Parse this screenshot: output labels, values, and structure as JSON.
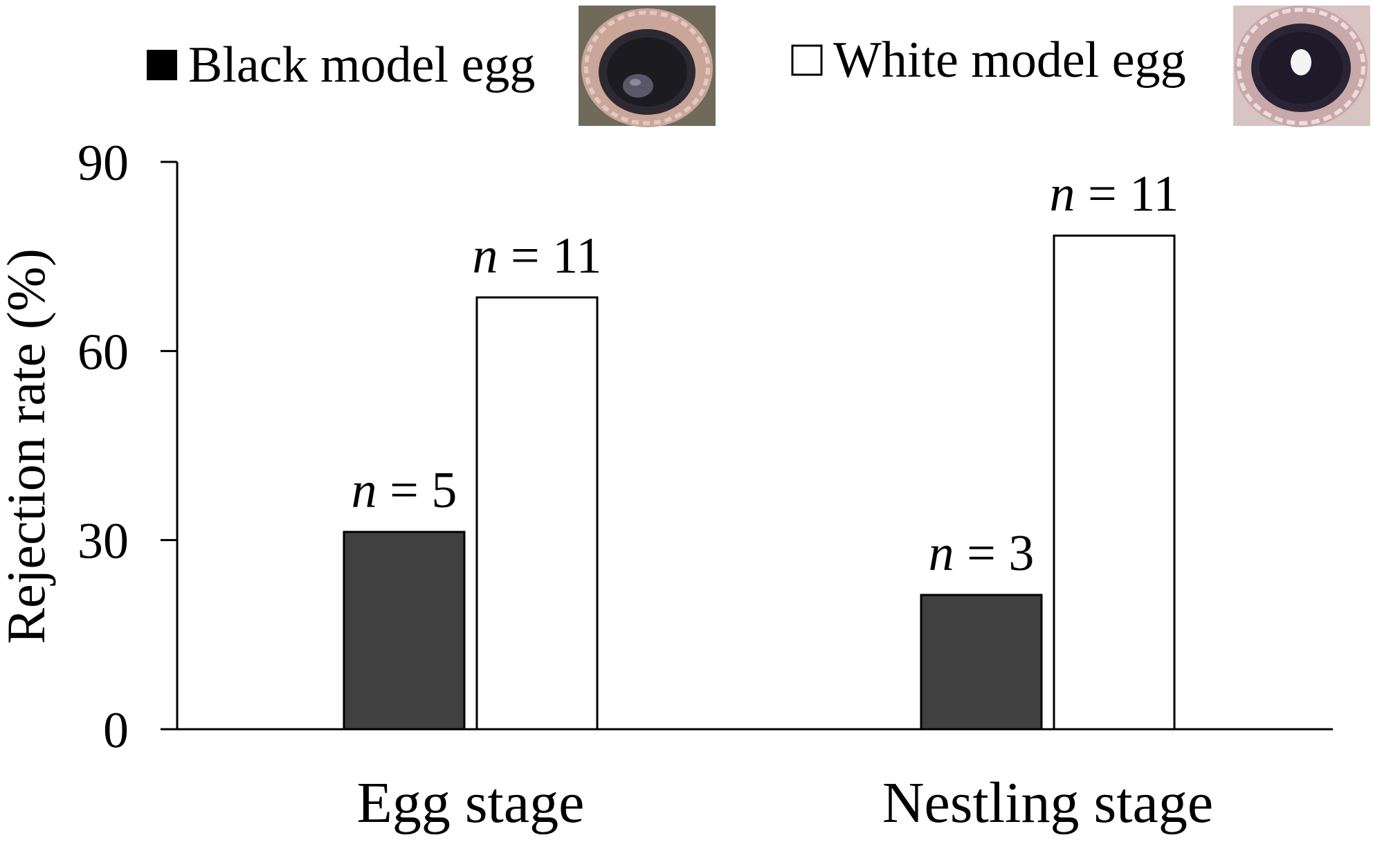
{
  "chart_data": {
    "type": "bar",
    "categories": [
      "Egg stage",
      "Nestling stage"
    ],
    "series": [
      {
        "name": "Black model egg",
        "color": "#404040",
        "values": [
          31.3,
          21.3
        ],
        "labels": [
          "n = 5",
          "n = 3"
        ],
        "n": [
          5,
          3
        ]
      },
      {
        "name": "White model egg",
        "color": "#ffffff",
        "values": [
          68.5,
          78.3
        ],
        "labels": [
          "n = 11",
          "n = 11"
        ],
        "n": [
          11,
          11
        ]
      }
    ],
    "ylabel": "Rejection rate (%)",
    "xlabel": "",
    "ylim": [
      0,
      90
    ],
    "yticks": [
      0,
      30,
      60,
      90
    ],
    "legend": {
      "position": "top",
      "items": [
        {
          "label": "Black model egg",
          "marker": "■",
          "photo_icon": "nest-with-black-egg-icon"
        },
        {
          "label": "White model egg",
          "marker": "□",
          "photo_icon": "nest-with-white-egg-icon"
        }
      ]
    },
    "grid": false
  }
}
